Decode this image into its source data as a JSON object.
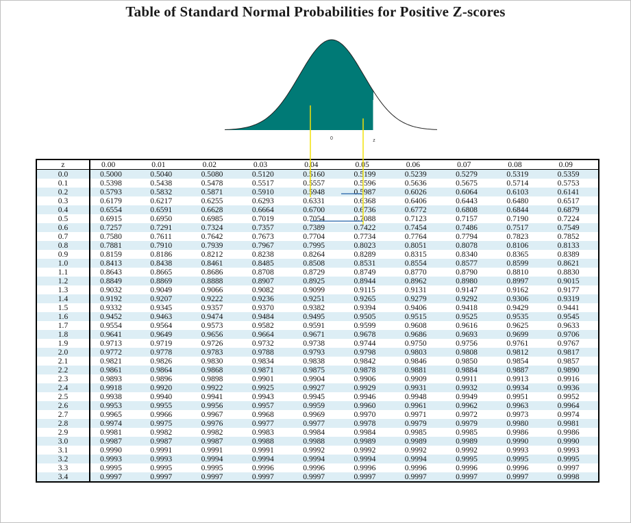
{
  "title": "Table of Standard Normal Probabilities for Positive Z-scores",
  "figure": {
    "center_label": "0",
    "z_label": "z",
    "fill_color": "#007a76"
  },
  "table": {
    "corner": "z",
    "columns": [
      "0.00",
      "0.01",
      "0.02",
      "0.03",
      "0.04",
      "0.05",
      "0.06",
      "0.07",
      "0.08",
      "0.09"
    ],
    "rows": [
      {
        "z": "0.0",
        "values": [
          "0.5000",
          "0.5040",
          "0.5080",
          "0.5120",
          "0.5160",
          "0.5199",
          "0.5239",
          "0.5279",
          "0.5319",
          "0.5359"
        ]
      },
      {
        "z": "0.1",
        "values": [
          "0.5398",
          "0.5438",
          "0.5478",
          "0.5517",
          "0.5557",
          "0.5596",
          "0.5636",
          "0.5675",
          "0.5714",
          "0.5753"
        ]
      },
      {
        "z": "0.2",
        "values": [
          "0.5793",
          "0.5832",
          "0.5871",
          "0.5910",
          "0.5948",
          "0.5987",
          "0.6026",
          "0.6064",
          "0.6103",
          "0.6141"
        ]
      },
      {
        "z": "0.3",
        "values": [
          "0.6179",
          "0.6217",
          "0.6255",
          "0.6293",
          "0.6331",
          "0.6368",
          "0.6406",
          "0.6443",
          "0.6480",
          "0.6517"
        ]
      },
      {
        "z": "0.4",
        "values": [
          "0.6554",
          "0.6591",
          "0.6628",
          "0.6664",
          "0.6700",
          "0.6736",
          "0.6772",
          "0.6808",
          "0.6844",
          "0.6879"
        ]
      },
      {
        "z": "0.5",
        "values": [
          "0.6915",
          "0.6950",
          "0.6985",
          "0.7019",
          "0.7054",
          "0.7088",
          "0.7123",
          "0.7157",
          "0.7190",
          "0.7224"
        ]
      },
      {
        "z": "0.6",
        "values": [
          "0.7257",
          "0.7291",
          "0.7324",
          "0.7357",
          "0.7389",
          "0.7422",
          "0.7454",
          "0.7486",
          "0.7517",
          "0.7549"
        ]
      },
      {
        "z": "0.7",
        "values": [
          "0.7580",
          "0.7611",
          "0.7642",
          "0.7673",
          "0.7704",
          "0.7734",
          "0.7764",
          "0.7794",
          "0.7823",
          "0.7852"
        ]
      },
      {
        "z": "0.8",
        "values": [
          "0.7881",
          "0.7910",
          "0.7939",
          "0.7967",
          "0.7995",
          "0.8023",
          "0.8051",
          "0.8078",
          "0.8106",
          "0.8133"
        ]
      },
      {
        "z": "0.9",
        "values": [
          "0.8159",
          "0.8186",
          "0.8212",
          "0.8238",
          "0.8264",
          "0.8289",
          "0.8315",
          "0.8340",
          "0.8365",
          "0.8389"
        ]
      },
      {
        "z": "1.0",
        "values": [
          "0.8413",
          "0.8438",
          "0.8461",
          "0.8485",
          "0.8508",
          "0.8531",
          "0.8554",
          "0.8577",
          "0.8599",
          "0.8621"
        ]
      },
      {
        "z": "1.1",
        "values": [
          "0.8643",
          "0.8665",
          "0.8686",
          "0.8708",
          "0.8729",
          "0.8749",
          "0.8770",
          "0.8790",
          "0.8810",
          "0.8830"
        ]
      },
      {
        "z": "1.2",
        "values": [
          "0.8849",
          "0.8869",
          "0.8888",
          "0.8907",
          "0.8925",
          "0.8944",
          "0.8962",
          "0.8980",
          "0.8997",
          "0.9015"
        ]
      },
      {
        "z": "1.3",
        "values": [
          "0.9032",
          "0.9049",
          "0.9066",
          "0.9082",
          "0.9099",
          "0.9115",
          "0.9131",
          "0.9147",
          "0.9162",
          "0.9177"
        ]
      },
      {
        "z": "1.4",
        "values": [
          "0.9192",
          "0.9207",
          "0.9222",
          "0.9236",
          "0.9251",
          "0.9265",
          "0.9279",
          "0.9292",
          "0.9306",
          "0.9319"
        ]
      },
      {
        "z": "1.5",
        "values": [
          "0.9332",
          "0.9345",
          "0.9357",
          "0.9370",
          "0.9382",
          "0.9394",
          "0.9406",
          "0.9418",
          "0.9429",
          "0.9441"
        ]
      },
      {
        "z": "1.6",
        "values": [
          "0.9452",
          "0.9463",
          "0.9474",
          "0.9484",
          "0.9495",
          "0.9505",
          "0.9515",
          "0.9525",
          "0.9535",
          "0.9545"
        ]
      },
      {
        "z": "1.7",
        "values": [
          "0.9554",
          "0.9564",
          "0.9573",
          "0.9582",
          "0.9591",
          "0.9599",
          "0.9608",
          "0.9616",
          "0.9625",
          "0.9633"
        ]
      },
      {
        "z": "1.8",
        "values": [
          "0.9641",
          "0.9649",
          "0.9656",
          "0.9664",
          "0.9671",
          "0.9678",
          "0.9686",
          "0.9693",
          "0.9699",
          "0.9706"
        ]
      },
      {
        "z": "1.9",
        "values": [
          "0.9713",
          "0.9719",
          "0.9726",
          "0.9732",
          "0.9738",
          "0.9744",
          "0.9750",
          "0.9756",
          "0.9761",
          "0.9767"
        ]
      },
      {
        "z": "2.0",
        "values": [
          "0.9772",
          "0.9778",
          "0.9783",
          "0.9788",
          "0.9793",
          "0.9798",
          "0.9803",
          "0.9808",
          "0.9812",
          "0.9817"
        ]
      },
      {
        "z": "2.1",
        "values": [
          "0.9821",
          "0.9826",
          "0.9830",
          "0.9834",
          "0.9838",
          "0.9842",
          "0.9846",
          "0.9850",
          "0.9854",
          "0.9857"
        ]
      },
      {
        "z": "2.2",
        "values": [
          "0.9861",
          "0.9864",
          "0.9868",
          "0.9871",
          "0.9875",
          "0.9878",
          "0.9881",
          "0.9884",
          "0.9887",
          "0.9890"
        ]
      },
      {
        "z": "2.3",
        "values": [
          "0.9893",
          "0.9896",
          "0.9898",
          "0.9901",
          "0.9904",
          "0.9906",
          "0.9909",
          "0.9911",
          "0.9913",
          "0.9916"
        ]
      },
      {
        "z": "2.4",
        "values": [
          "0.9918",
          "0.9920",
          "0.9922",
          "0.9925",
          "0.9927",
          "0.9929",
          "0.9931",
          "0.9932",
          "0.9934",
          "0.9936"
        ]
      },
      {
        "z": "2.5",
        "values": [
          "0.9938",
          "0.9940",
          "0.9941",
          "0.9943",
          "0.9945",
          "0.9946",
          "0.9948",
          "0.9949",
          "0.9951",
          "0.9952"
        ]
      },
      {
        "z": "2.6",
        "values": [
          "0.9953",
          "0.9955",
          "0.9956",
          "0.9957",
          "0.9959",
          "0.9960",
          "0.9961",
          "0.9962",
          "0.9963",
          "0.9964"
        ]
      },
      {
        "z": "2.7",
        "values": [
          "0.9965",
          "0.9966",
          "0.9967",
          "0.9968",
          "0.9969",
          "0.9970",
          "0.9971",
          "0.9972",
          "0.9973",
          "0.9974"
        ]
      },
      {
        "z": "2.8",
        "values": [
          "0.9974",
          "0.9975",
          "0.9976",
          "0.9977",
          "0.9977",
          "0.9978",
          "0.9979",
          "0.9979",
          "0.9980",
          "0.9981"
        ]
      },
      {
        "z": "2.9",
        "values": [
          "0.9981",
          "0.9982",
          "0.9982",
          "0.9983",
          "0.9984",
          "0.9984",
          "0.9985",
          "0.9985",
          "0.9986",
          "0.9986"
        ]
      },
      {
        "z": "3.0",
        "values": [
          "0.9987",
          "0.9987",
          "0.9987",
          "0.9988",
          "0.9988",
          "0.9989",
          "0.9989",
          "0.9989",
          "0.9990",
          "0.9990"
        ]
      },
      {
        "z": "3.1",
        "values": [
          "0.9990",
          "0.9991",
          "0.9991",
          "0.9991",
          "0.9992",
          "0.9992",
          "0.9992",
          "0.9992",
          "0.9993",
          "0.9993"
        ]
      },
      {
        "z": "3.2",
        "values": [
          "0.9993",
          "0.9993",
          "0.9994",
          "0.9994",
          "0.9994",
          "0.9994",
          "0.9994",
          "0.9995",
          "0.9995",
          "0.9995"
        ]
      },
      {
        "z": "3.3",
        "values": [
          "0.9995",
          "0.9995",
          "0.9995",
          "0.9996",
          "0.9996",
          "0.9996",
          "0.9996",
          "0.9996",
          "0.9996",
          "0.9997"
        ]
      },
      {
        "z": "3.4",
        "values": [
          "0.9997",
          "0.9997",
          "0.9997",
          "0.9997",
          "0.9997",
          "0.9997",
          "0.9997",
          "0.9997",
          "0.9997",
          "0.9998"
        ]
      }
    ]
  }
}
